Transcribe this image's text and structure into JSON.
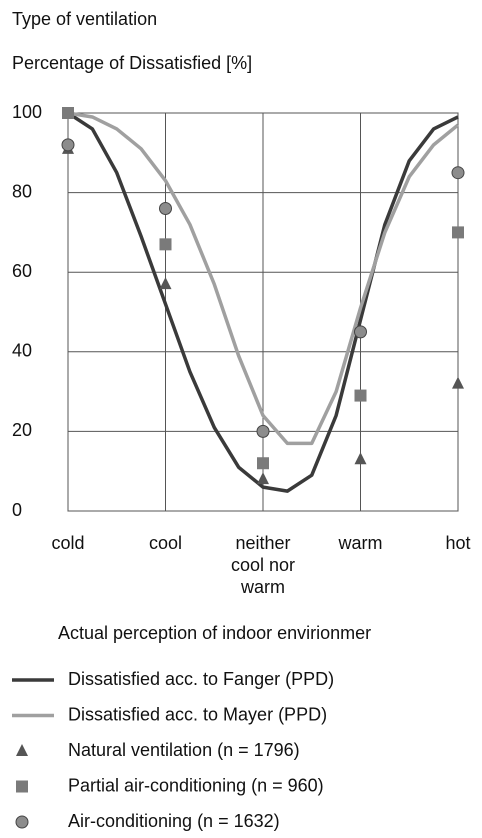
{
  "chart_data": {
    "type": "line",
    "title": "Type of ventilation",
    "subtitle": "Percentage of Dissatisfied [%]",
    "x_label": "Actual perception of indoor envirionmer",
    "xlim": [
      0,
      4
    ],
    "xticks": [
      {
        "value": 0,
        "label": "cold"
      },
      {
        "value": 1,
        "label": "cool"
      },
      {
        "value": 2,
        "label": "neither cool nor warm"
      },
      {
        "value": 3,
        "label": "warm"
      },
      {
        "value": 4,
        "label": "hot"
      }
    ],
    "ylim": [
      0,
      100
    ],
    "yticks": [
      0,
      20,
      40,
      60,
      80,
      100
    ],
    "grid": true,
    "series": [
      {
        "name": "Dissatisfied acc. to Fanger (PPD)",
        "kind": "line",
        "color": "#3a3a3a",
        "x": [
          0,
          0.25,
          0.5,
          0.75,
          1,
          1.25,
          1.5,
          1.75,
          2,
          2.25,
          2.5,
          2.75,
          3,
          3.25,
          3.5,
          3.75,
          4
        ],
        "values": [
          100,
          96,
          85,
          69,
          52,
          35,
          21,
          11,
          6,
          5,
          9,
          24,
          48,
          72,
          88,
          96,
          99
        ]
      },
      {
        "name": "Dissatisfied acc. to Mayer (PPD)",
        "kind": "line",
        "color": "#a0a0a0",
        "x": [
          0,
          0.25,
          0.5,
          0.75,
          1,
          1.25,
          1.5,
          1.75,
          2,
          2.25,
          2.5,
          2.75,
          3,
          3.25,
          3.5,
          3.75,
          4
        ],
        "values": [
          100,
          99,
          96,
          91,
          83,
          72,
          57,
          39,
          24,
          17,
          17,
          30,
          51,
          70,
          84,
          92,
          97
        ]
      },
      {
        "name": "Natural ventilation (n = 1796)",
        "kind": "triangle",
        "color": "#555555",
        "x": [
          0,
          1,
          2,
          3,
          4
        ],
        "values": [
          91,
          57,
          8,
          13,
          32
        ]
      },
      {
        "name": "Partial air-conditioning (n = 960)",
        "kind": "square",
        "color": "#7a7a7a",
        "x": [
          0,
          1,
          2,
          3,
          4
        ],
        "values": [
          100,
          67,
          12,
          29,
          70
        ]
      },
      {
        "name": "Air-conditioning (n = 1632)",
        "kind": "circle",
        "color": "#8c8c8c",
        "x": [
          0,
          1,
          2,
          3,
          4
        ],
        "values": [
          92,
          76,
          20,
          45,
          85
        ]
      }
    ]
  }
}
